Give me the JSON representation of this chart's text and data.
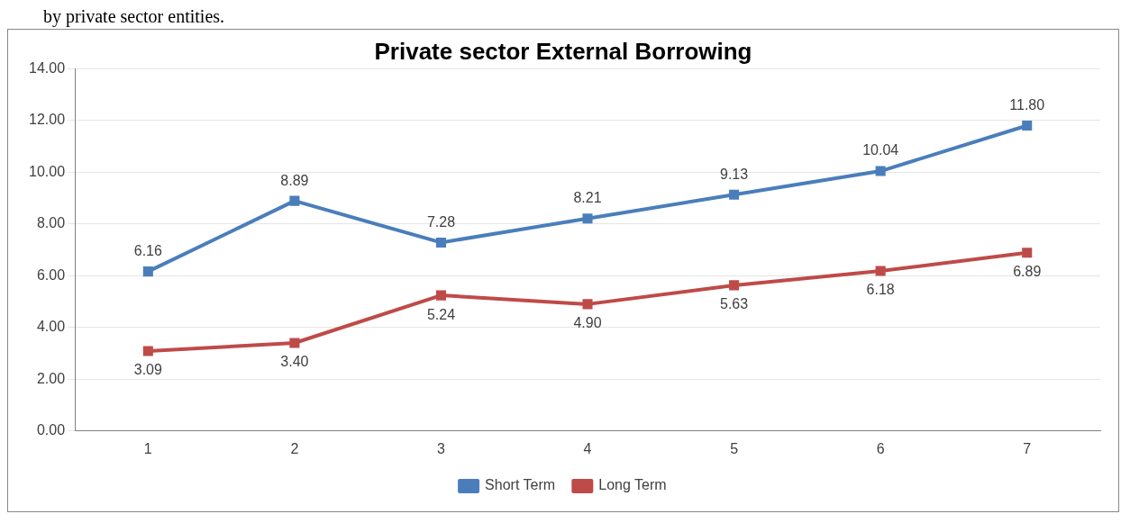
{
  "chart_data": {
    "type": "line",
    "title": "Private sector External Borrowing",
    "annotations": [
      "by private sector entities."
    ],
    "categories": [
      "1",
      "2",
      "3",
      "4",
      "5",
      "6",
      "7"
    ],
    "series": [
      {
        "name": "Short Term",
        "color": "#4a7ebb",
        "values": [
          6.16,
          8.89,
          7.28,
          8.21,
          9.13,
          10.04,
          11.8
        ],
        "value_labels": [
          "6.16",
          "8.89",
          "7.28",
          "8.21",
          "9.13",
          "10.04",
          "11.80"
        ]
      },
      {
        "name": "Long Term",
        "color": "#be4b48",
        "values": [
          3.09,
          3.4,
          5.24,
          4.9,
          5.63,
          6.18,
          6.89
        ],
        "value_labels": [
          "3.09",
          "3.40",
          "5.24",
          "4.90",
          "5.63",
          "6.18",
          "6.89"
        ]
      }
    ],
    "ylim": [
      0,
      14
    ],
    "yticks": [
      {
        "value": 0,
        "label": "0.00"
      },
      {
        "value": 2,
        "label": "2.00"
      },
      {
        "value": 4,
        "label": "4.00"
      },
      {
        "value": 6,
        "label": "6.00"
      },
      {
        "value": 8,
        "label": "8.00"
      },
      {
        "value": 10,
        "label": "10.00"
      },
      {
        "value": 12,
        "label": "12.00"
      },
      {
        "value": 14,
        "label": "14.00"
      }
    ],
    "grid": "y",
    "legend": "bottom",
    "marker": "square",
    "line_style": "solid"
  }
}
